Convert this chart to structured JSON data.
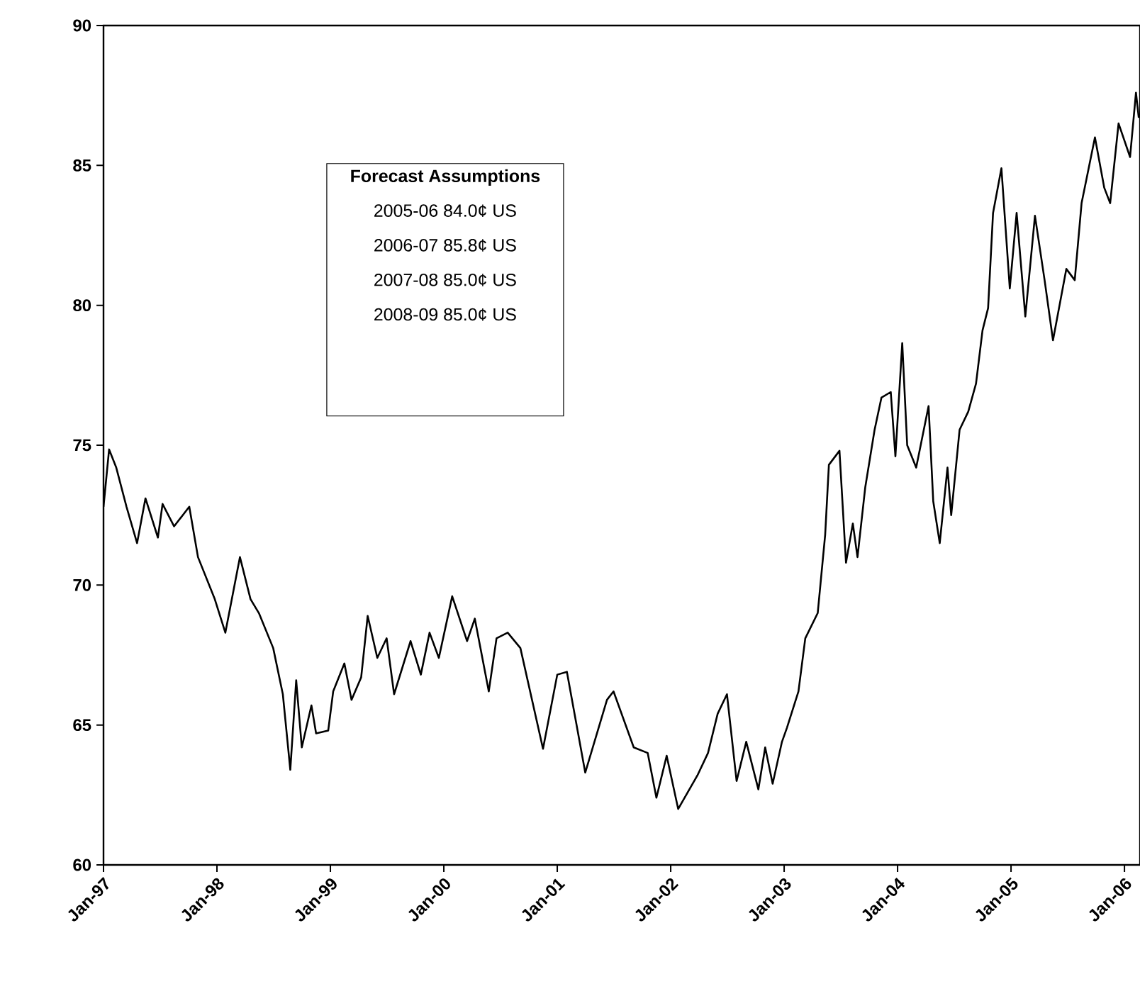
{
  "chart_data": {
    "type": "line",
    "annotations": [
      "Forecast Assumptions",
      "2005-06 84.0¢ US",
      "2006-07 85.8¢ US",
      "2007-08 85.0¢ US",
      "2008-09 85.0¢ US"
    ],
    "x": [
      "1997-01-01",
      "1997-01-19",
      "1997-02-11",
      "1997-03-16",
      "1997-04-19",
      "1997-05-16",
      "1997-06-25",
      "1997-07-10",
      "1997-08-16",
      "1997-10-04",
      "1997-11-01",
      "1997-12-25",
      "1998-01-28",
      "1998-03-16",
      "1998-04-19",
      "1998-05-16",
      "1998-07-01",
      "1998-08-01",
      "1998-08-25",
      "1998-09-13",
      "1998-10-01",
      "1998-11-01",
      "1998-11-16",
      "1998-12-25",
      "1999-01-10",
      "1999-02-15",
      "1999-03-10",
      "1999-04-10",
      "1999-05-01",
      "1999-06-01",
      "1999-07-01",
      "1999-07-25",
      "1999-09-16",
      "1999-10-19",
      "1999-11-16",
      "1999-12-16",
      "2000-01-28",
      "2000-03-16",
      "2000-04-10",
      "2000-05-25",
      "2000-06-19",
      "2000-07-25",
      "2000-09-04",
      "2000-11-16",
      "2001-01-01",
      "2001-02-01",
      "2001-04-01",
      "2001-06-10",
      "2001-07-01",
      "2001-09-04",
      "2001-10-19",
      "2001-11-16",
      "2001-12-19",
      "2002-01-25",
      "2002-03-28",
      "2002-05-01",
      "2002-06-01",
      "2002-07-01",
      "2002-08-01",
      "2002-09-01",
      "2002-10-10",
      "2002-11-01",
      "2002-11-25",
      "2002-12-25",
      "2003-01-10",
      "2003-02-16",
      "2003-03-10",
      "2003-04-19",
      "2003-05-13",
      "2003-05-25",
      "2003-06-28",
      "2003-07-19",
      "2003-08-10",
      "2003-08-25",
      "2003-09-19",
      "2003-10-19",
      "2003-11-10",
      "2003-12-10",
      "2003-12-25",
      "2004-01-16",
      "2004-02-01",
      "2004-03-01",
      "2004-04-10",
      "2004-04-25",
      "2004-05-16",
      "2004-06-10",
      "2004-06-22",
      "2004-07-19",
      "2004-08-16",
      "2004-09-10",
      "2004-10-01",
      "2004-10-19",
      "2004-11-04",
      "2004-12-01",
      "2004-12-28",
      "2005-01-19",
      "2005-02-16",
      "2005-03-19",
      "2005-04-19",
      "2005-05-16",
      "2005-06-28",
      "2005-07-25",
      "2005-08-16",
      "2005-09-28",
      "2005-10-28",
      "2005-11-16",
      "2005-12-13",
      "2006-01-19",
      "2006-02-07",
      "2006-02-16"
    ],
    "series": [
      {
        "color": "#000000",
        "values": [
          72.8,
          74.85,
          74.2,
          72.8,
          71.5,
          73.1,
          71.7,
          72.9,
          72.1,
          72.8,
          71.0,
          69.5,
          68.3,
          71.0,
          69.5,
          69.0,
          67.75,
          66.1,
          63.4,
          66.6,
          64.2,
          65.7,
          64.7,
          64.8,
          66.2,
          67.2,
          65.9,
          66.7,
          68.9,
          67.4,
          68.1,
          66.1,
          68.0,
          66.8,
          68.3,
          67.4,
          69.6,
          68.0,
          68.8,
          66.2,
          68.1,
          68.3,
          67.75,
          64.15,
          66.8,
          66.9,
          63.3,
          65.9,
          66.2,
          64.2,
          64.0,
          62.4,
          63.9,
          62.0,
          63.2,
          64.0,
          65.4,
          66.1,
          63.0,
          64.4,
          62.7,
          64.2,
          62.9,
          64.4,
          64.9,
          66.2,
          68.1,
          69.0,
          71.8,
          74.3,
          74.8,
          70.8,
          72.2,
          71.0,
          73.5,
          75.55,
          76.7,
          76.9,
          74.6,
          78.65,
          75.0,
          74.2,
          76.4,
          73.0,
          71.5,
          74.2,
          72.5,
          75.55,
          76.2,
          77.2,
          79.1,
          79.9,
          83.3,
          84.9,
          80.6,
          83.3,
          79.6,
          83.2,
          80.9,
          78.75,
          81.3,
          80.9,
          83.65,
          86.0,
          84.2,
          83.65,
          86.5,
          85.3,
          87.6,
          86.7
        ]
      }
    ],
    "xlim": [
      "1997-01-01",
      "2006-02-20"
    ],
    "xticks": [
      {
        "value": "1997-01",
        "label": "Jan-97"
      },
      {
        "value": "1998-01",
        "label": "Jan-98"
      },
      {
        "value": "1999-01",
        "label": "Jan-99"
      },
      {
        "value": "2000-01",
        "label": "Jan-00"
      },
      {
        "value": "2001-01",
        "label": "Jan-01"
      },
      {
        "value": "2002-01",
        "label": "Jan-02"
      },
      {
        "value": "2003-01",
        "label": "Jan-03"
      },
      {
        "value": "2004-01",
        "label": "Jan-04"
      },
      {
        "value": "2005-01",
        "label": "Jan-05"
      },
      {
        "value": "2006-01",
        "label": "Jan-06"
      }
    ],
    "ylim": [
      60,
      90
    ],
    "yticks": [
      60,
      65,
      70,
      75,
      80,
      85,
      90
    ],
    "grid": false,
    "legend": false,
    "marker": "none",
    "line_style": "solid"
  }
}
